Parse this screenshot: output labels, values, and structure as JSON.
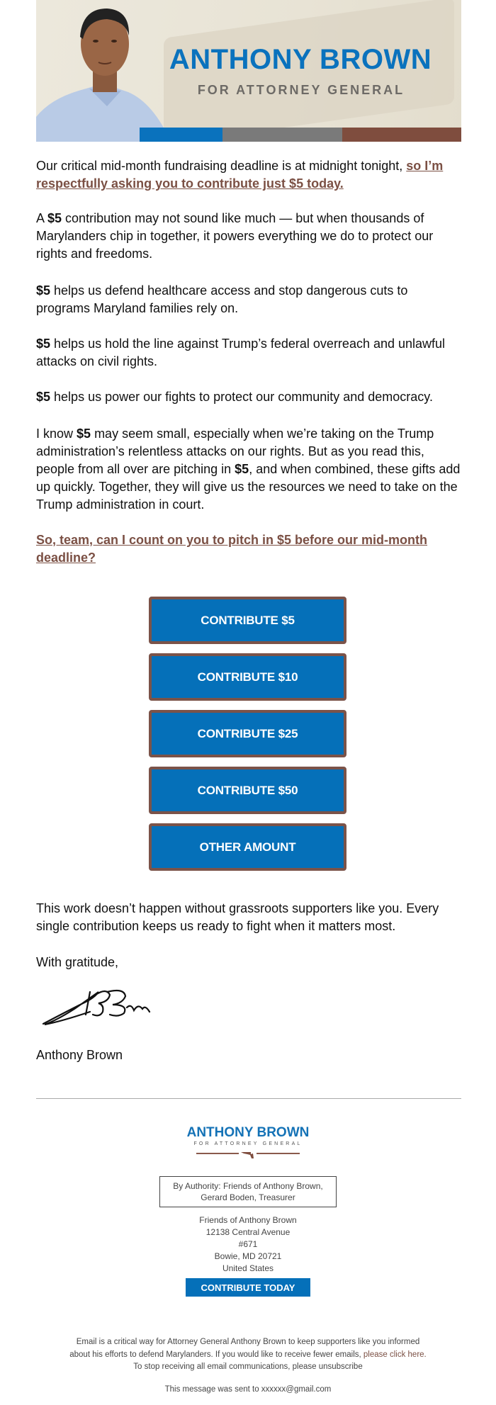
{
  "colors": {
    "brand_blue": "#0570b9",
    "brand_brown": "#7b5349",
    "link_brown": "#7b5044",
    "stripe_gray": "#7a7a7a"
  },
  "header": {
    "name": "ANTHONY BROWN",
    "subtitle": "FOR ATTORNEY GENERAL"
  },
  "body": {
    "p1": {
      "text": "Our critical mid-month fundraising deadline is at midnight tonight, ",
      "link": "so I’m respectfully asking you to contribute just $5 today."
    },
    "p2": [
      "A ",
      "$5",
      " contribution may not sound like much — but when thousands of Marylanders chip in together, it powers everything we do to protect our rights and freedoms."
    ],
    "p3": [
      "$5",
      " helps us defend healthcare access and stop dangerous cuts to programs Maryland families rely on."
    ],
    "p4": [
      "$5",
      " helps us hold the line against Trump’s federal overreach and unlawful attacks on civil rights."
    ],
    "p5": [
      "$5",
      " helps us power our fights to protect our community and democracy."
    ],
    "p6": [
      "I know ",
      "$5",
      " may seem small, especially when we’re taking on the Trump administration’s relentless attacks on our rights. But as you read this, people from all over are pitching in ",
      "$5",
      ", and when combined, these gifts add up quickly. Together, they will give us the resources we need to take on the Trump administration in court."
    ],
    "cta": "So, team, can I count on you to pitch in $5 before our mid-month deadline?",
    "buttons": [
      "CONTRIBUTE $5",
      "CONTRIBUTE $10",
      "CONTRIBUTE $25",
      "CONTRIBUTE $50",
      "OTHER AMOUNT"
    ],
    "p7": "This work doesn’t happen without grassroots supporters like you. Every single contribution keeps us ready to fight when it matters most.",
    "closing": "With gratitude,",
    "signature_text": "Anthony Brown",
    "signer": "Anthony Brown"
  },
  "footer": {
    "logo_name": "ANTHONY BROWN",
    "logo_sub": "FOR ATTORNEY GENERAL",
    "authority_line1": "By Authority: Friends of Anthony Brown,",
    "authority_line2": "Gerard Boden, Treasurer",
    "address": [
      "Friends of Anthony Brown",
      "12138 Central Avenue",
      "#671",
      "Bowie, MD 20721",
      "United States"
    ],
    "contribute_today": "CONTRIBUTE TODAY",
    "disclaimer_1": "Email is a critical way for Attorney General Anthony Brown to keep supporters like you informed",
    "disclaimer_2": "about his efforts to defend Marylanders. If you would like to receive fewer emails, ",
    "disclaimer_link": "please click here.",
    "disclaimer_3": "To stop receiving all email communications, please unsubscribe",
    "sent_to": "This message was sent to xxxxxx@gmail.com"
  }
}
